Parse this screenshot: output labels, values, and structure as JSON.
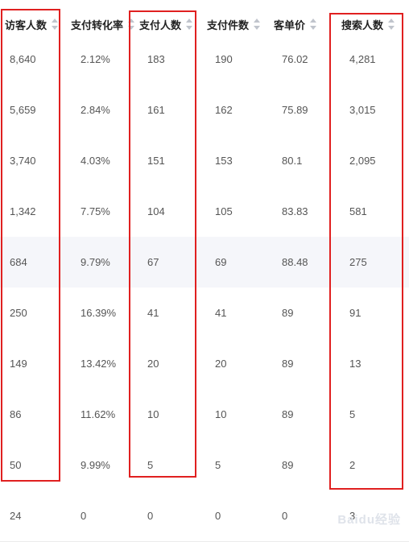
{
  "table": {
    "columns": [
      {
        "label": "访客人数",
        "key": "visitors"
      },
      {
        "label": "支付转化率",
        "key": "conversion"
      },
      {
        "label": "支付人数",
        "key": "payers"
      },
      {
        "label": "支付件数",
        "key": "items"
      },
      {
        "label": "客单价",
        "key": "aov"
      },
      {
        "label": "搜索人数",
        "key": "searchers"
      }
    ],
    "rows": [
      [
        "8,640",
        "2.12%",
        "183",
        "190",
        "76.02",
        "4,281"
      ],
      [
        "5,659",
        "2.84%",
        "161",
        "162",
        "75.89",
        "3,015"
      ],
      [
        "3,740",
        "4.03%",
        "151",
        "153",
        "80.1",
        "2,095"
      ],
      [
        "1,342",
        "7.75%",
        "104",
        "105",
        "83.83",
        "581"
      ],
      [
        "684",
        "9.79%",
        "67",
        "69",
        "88.48",
        "275"
      ],
      [
        "250",
        "16.39%",
        "41",
        "41",
        "89",
        "91"
      ],
      [
        "149",
        "13.42%",
        "20",
        "20",
        "89",
        "13"
      ],
      [
        "86",
        "11.62%",
        "10",
        "10",
        "89",
        "5"
      ],
      [
        "50",
        "9.99%",
        "5",
        "5",
        "89",
        "2"
      ],
      [
        "24",
        "0",
        "0",
        "0",
        "0",
        "3"
      ]
    ],
    "highlighted_row_index": 4,
    "highlighted_columns": [
      "访客人数",
      "支付人数",
      "搜索人数"
    ]
  },
  "colors": {
    "highlight_border": "#e02020",
    "row_hover_bg": "#f5f6fa",
    "sort_icon": "#c0c4cc"
  },
  "watermark": "Baidu经验"
}
